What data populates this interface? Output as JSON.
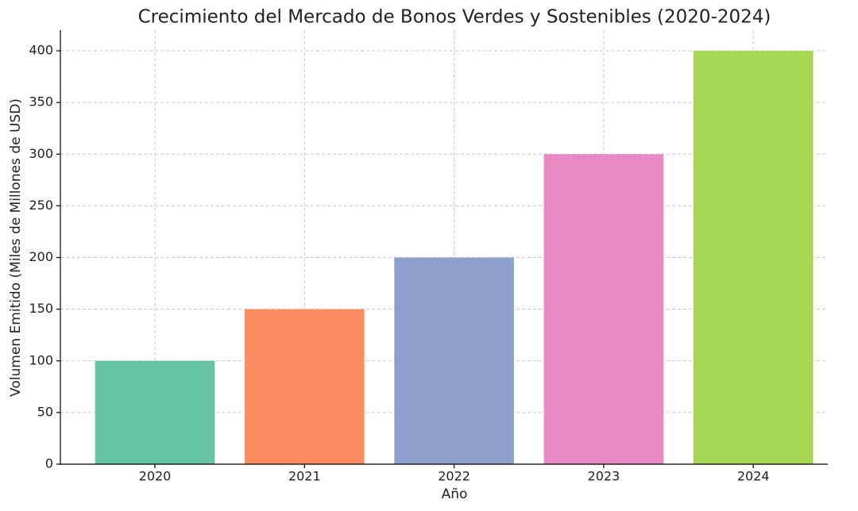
{
  "chart_data": {
    "type": "bar",
    "title": "Crecimiento del Mercado de Bonos Verdes y Sostenibles (2020-2024)",
    "x_label": "Año",
    "y_label": "Volumen Emitido (Miles de Millones de USD)",
    "categories": [
      "2020",
      "2021",
      "2022",
      "2023",
      "2024"
    ],
    "values": [
      100,
      150,
      200,
      300,
      400
    ],
    "colors": [
      "#66c2a5",
      "#fc8d62",
      "#8da0cb",
      "#e78ac3",
      "#a6d854"
    ],
    "ylim": [
      0,
      420
    ],
    "yticks": [
      0,
      50,
      100,
      150,
      200,
      250,
      300,
      350,
      400
    ],
    "grid": true
  }
}
